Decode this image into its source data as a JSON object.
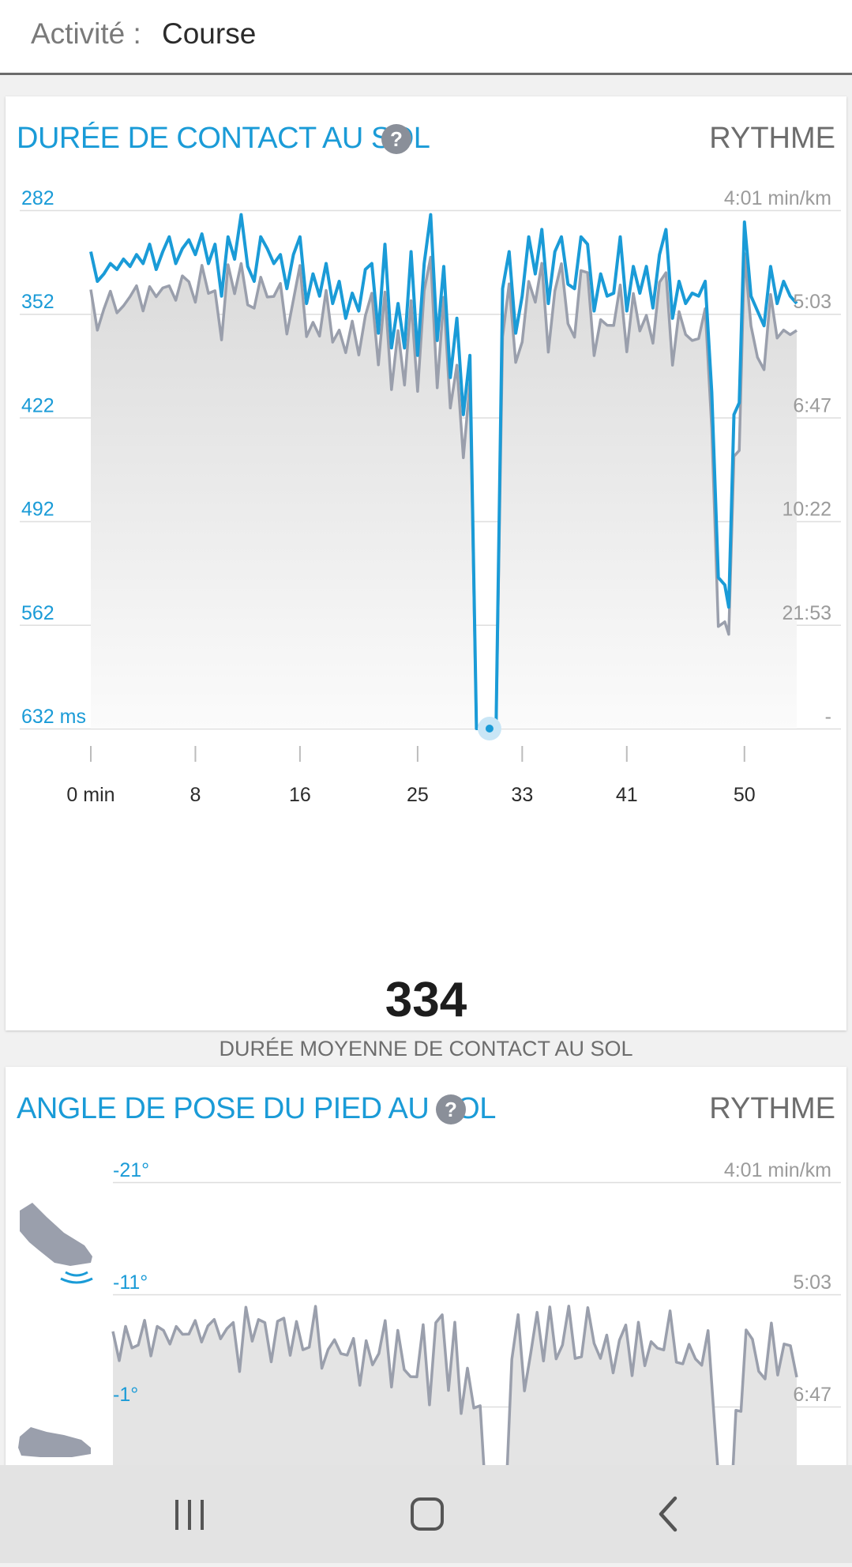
{
  "header": {
    "label": "Activité :",
    "value": "Course"
  },
  "card1": {
    "title": "DURÉE DE CONTACT AU SOL",
    "help_glyph": "?",
    "right_title": "RYTHME",
    "average_value": "334",
    "average_label": "DURÉE MOYENNE DE CONTACT AU SOL",
    "chart_data": {
      "type": "line",
      "title": "DURÉE DE CONTACT AU SOL",
      "y_left_ticks": [
        "282",
        "352",
        "422",
        "492",
        "562",
        "632 ms"
      ],
      "y_right_ticks": [
        "4:01 min/km",
        "5:03",
        "6:47",
        "10:22",
        "21:53",
        "-"
      ],
      "x_ticks": [
        "0 min",
        "8",
        "16",
        "25",
        "33",
        "41",
        "50"
      ],
      "x_tick_values": [
        0,
        8,
        16,
        25,
        33,
        41,
        50
      ],
      "xlim": [
        0,
        54
      ],
      "ylim": [
        282,
        632
      ],
      "pace_ylim": [
        0,
        5
      ],
      "grid": true,
      "colors": {
        "contact": "#1a9bd7",
        "pace": "#9a9fac",
        "fill": "#e2e2e2"
      },
      "series": [
        {
          "values_x": [
            0,
            0.5,
            1,
            1.5,
            2,
            2.5,
            3,
            3.5,
            4,
            4.5,
            5,
            5.5,
            6,
            6.5,
            7,
            7.5,
            8,
            8.5,
            9,
            9.5,
            10,
            10.5,
            11,
            11.5,
            12,
            12.5,
            13,
            13.5,
            14,
            14.5,
            15,
            15.5,
            16,
            16.5,
            17,
            17.5,
            18,
            18.5,
            19,
            19.5,
            20,
            20.5,
            21,
            21.5,
            22,
            22.5,
            23,
            23.5,
            24,
            24.5,
            25,
            25.5,
            26,
            26.5,
            27,
            27.5,
            28,
            28.5,
            29,
            29.5,
            30,
            30.2,
            30.8,
            31,
            31.5,
            32,
            32.5,
            33,
            33.5,
            34,
            34.5,
            35,
            35.5,
            36,
            36.5,
            37,
            37.5,
            38,
            38.5,
            39,
            39.5,
            40,
            40.5,
            41,
            41.5,
            42,
            42.5,
            43,
            43.5,
            44,
            44.5,
            45,
            45.5,
            46,
            46.5,
            47,
            47.5,
            48,
            48.5,
            48.8,
            49.2,
            49.6,
            50,
            50.5,
            51,
            51.5,
            52,
            52.5,
            53,
            53.5,
            54
          ],
          "values_y": [
            310,
            330,
            325,
            318,
            322,
            315,
            320,
            312,
            318,
            305,
            322,
            310,
            300,
            318,
            308,
            302,
            312,
            298,
            318,
            305,
            340,
            300,
            315,
            285,
            320,
            330,
            300,
            308,
            318,
            312,
            335,
            312,
            300,
            345,
            325,
            340,
            318,
            345,
            330,
            355,
            338,
            350,
            322,
            318,
            365,
            305,
            375,
            345,
            375,
            310,
            380,
            318,
            285,
            370,
            320,
            395,
            355,
            420,
            380,
            632,
            632,
            632,
            632,
            632,
            335,
            310,
            365,
            340,
            300,
            325,
            295,
            345,
            310,
            300,
            332,
            335,
            300,
            305,
            350,
            325,
            340,
            338,
            300,
            350,
            320,
            338,
            320,
            348,
            312,
            295,
            355,
            330,
            345,
            338,
            340,
            330,
            405,
            530,
            535,
            550,
            420,
            412,
            290,
            340,
            350,
            360,
            320,
            345,
            330,
            340,
            345
          ]
        }
      ]
    }
  },
  "card2": {
    "title": "ANGLE DE POSE DU PIED AU SOL",
    "help_glyph": "?",
    "right_title": "RYTHME",
    "chart_data": {
      "type": "area",
      "title": "ANGLE DE POSE DU PIED AU SOL",
      "y_left_ticks": [
        "-21°",
        "-11°",
        "-1°"
      ],
      "y_right_ticks": [
        "4:01 min/km",
        "5:03",
        "6:47"
      ],
      "grid": true
    }
  },
  "icons": {
    "shoe_heel": "shoe-heel-strike-icon",
    "shoe_flat": "shoe-flat-icon",
    "nav_recents": "recent-apps-icon",
    "nav_home": "home-icon",
    "nav_back": "back-icon"
  }
}
